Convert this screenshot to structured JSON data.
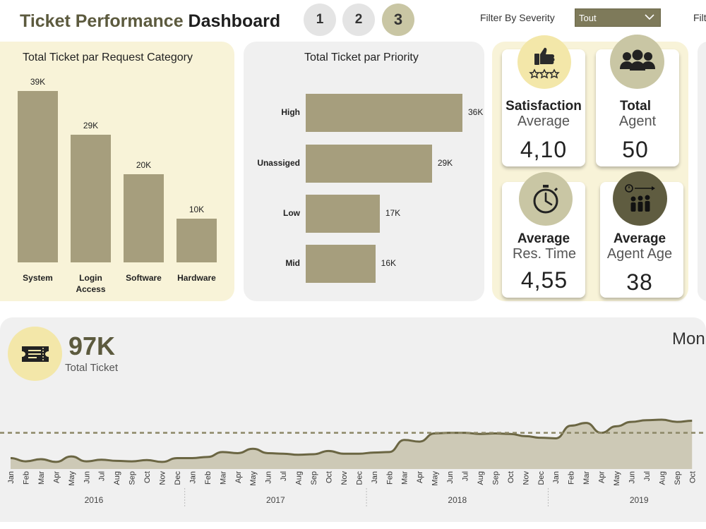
{
  "header": {
    "title_part1": "Ticket Performance",
    "title_part2": "Dashboard",
    "pages": [
      "1",
      "2",
      "3"
    ],
    "filter_severity_label": "Filter By Severity",
    "filter_severity_value": "Tout",
    "filter_next_label": "Filt"
  },
  "category_chart": {
    "title": "Total Ticket par Request Category"
  },
  "priority_chart": {
    "title": "Total Ticket par Priority"
  },
  "kpis": {
    "satisfaction": {
      "line1": "Satisfaction",
      "line2": "Average",
      "value": "4,10"
    },
    "agents": {
      "line1": "Total",
      "line2": "Agent",
      "value": "50"
    },
    "res_time": {
      "line1": "Average",
      "line2": "Res. Time",
      "value": "4,55"
    },
    "agent_age": {
      "line1": "Average",
      "line2": "Agent Age",
      "value": "38"
    }
  },
  "total": {
    "value": "97K",
    "label": "Total Ticket",
    "next_title": "Mon"
  },
  "colors": {
    "bar": "#a69e7d",
    "panel_cream": "#f8f3d8",
    "panel_gray": "#f0f0f0",
    "accent_dark": "#5c5a3e",
    "area_fill": "#cdc9b6",
    "line": "#6b6643"
  },
  "chart_data": [
    {
      "type": "bar",
      "title": "Total Ticket par Request Category",
      "categories": [
        "System",
        "Login Access",
        "Software",
        "Hardware"
      ],
      "values": [
        39000,
        29000,
        20000,
        10000
      ],
      "data_labels": [
        "39K",
        "29K",
        "20K",
        "10K"
      ]
    },
    {
      "type": "bar",
      "orientation": "horizontal",
      "title": "Total Ticket par Priority",
      "categories": [
        "High",
        "Unassiged",
        "Low",
        "Mid"
      ],
      "values": [
        36000,
        29000,
        17000,
        16000
      ],
      "data_labels": [
        "36K",
        "29K",
        "17K",
        "16K"
      ]
    },
    {
      "type": "area",
      "title": "",
      "x": [
        "Jan",
        "Feb",
        "Mar",
        "Apr",
        "May",
        "Jun",
        "Jul",
        "Aug",
        "Sep",
        "Oct",
        "Nov",
        "Dec",
        "Jan",
        "Feb",
        "Mar",
        "Apr",
        "May",
        "Jun",
        "Jul",
        "Aug",
        "Sep",
        "Oct",
        "Nov",
        "Dec",
        "Jan",
        "Feb",
        "Mar",
        "Apr",
        "May",
        "Jun",
        "Jul",
        "Aug",
        "Sep",
        "Oct",
        "Nov",
        "Dec",
        "Jan",
        "Feb",
        "Mar",
        "Apr",
        "May",
        "Jun",
        "Jul",
        "Aug",
        "Sep",
        "Oct"
      ],
      "years": [
        "2016",
        "2017",
        "2018",
        "2019"
      ],
      "values": [
        1000,
        700,
        900,
        650,
        1150,
        700,
        850,
        750,
        700,
        820,
        650,
        1000,
        1000,
        1100,
        1550,
        1450,
        1850,
        1450,
        1400,
        1300,
        1350,
        1650,
        1400,
        1400,
        1500,
        1550,
        2650,
        2500,
        3250,
        3300,
        3300,
        3200,
        3250,
        3200,
        3000,
        2850,
        2800,
        3950,
        4200,
        3300,
        3900,
        4300,
        4450,
        4500,
        4300,
        4400
      ],
      "average": 3300,
      "grid": false
    }
  ]
}
